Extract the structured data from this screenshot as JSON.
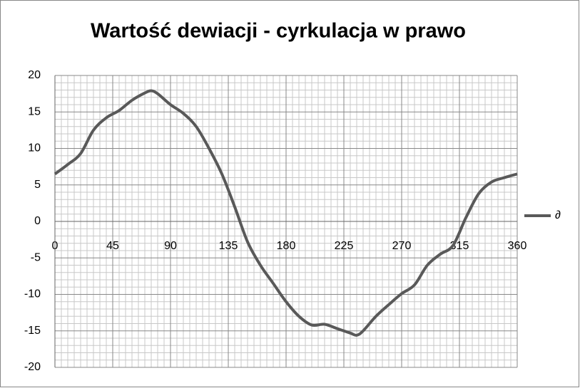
{
  "chart_data": {
    "type": "line",
    "title": "Wartość dewiacji - cyrkulacja w prawo",
    "x": [
      0,
      10,
      20,
      30,
      40,
      50,
      60,
      70,
      75,
      80,
      90,
      100,
      110,
      120,
      130,
      140,
      150,
      160,
      170,
      180,
      190,
      200,
      210,
      220,
      230,
      235,
      240,
      250,
      260,
      270,
      280,
      290,
      300,
      310,
      320,
      330,
      340,
      350,
      360
    ],
    "series": [
      {
        "name": "∂",
        "color": "#595959",
        "values": [
          6.5,
          7.8,
          9.3,
          12.5,
          14.2,
          15.2,
          16.6,
          17.6,
          17.9,
          17.5,
          16.0,
          14.8,
          13.0,
          10.0,
          6.5,
          2.0,
          -2.8,
          -6.0,
          -8.5,
          -11.0,
          -13.0,
          -14.2,
          -14.1,
          -14.7,
          -15.3,
          -15.6,
          -15.0,
          -13.0,
          -11.4,
          -9.9,
          -8.7,
          -6.0,
          -4.5,
          -3.3,
          0.5,
          3.8,
          5.4,
          6.0,
          6.5
        ]
      }
    ],
    "xlim": [
      0,
      360
    ],
    "xticks": [
      0,
      45,
      90,
      135,
      180,
      225,
      270,
      315,
      360
    ],
    "ylim": [
      -20,
      20
    ],
    "yticks": [
      -20,
      -15,
      -10,
      -5,
      0,
      5,
      10,
      15,
      20
    ],
    "grid": true,
    "legend": "right"
  }
}
